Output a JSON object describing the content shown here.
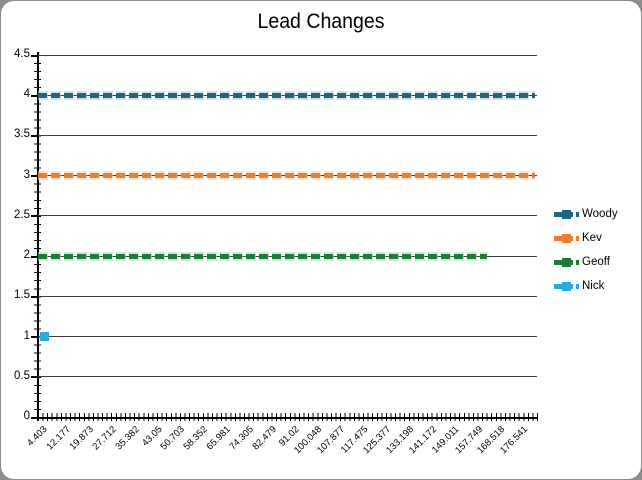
{
  "title": "Lead Changes",
  "frame": {
    "background": "#ffffff",
    "outside_color": "#8c8c8c"
  },
  "chart_data": {
    "type": "line",
    "title": "Lead Changes",
    "xlabel": "",
    "ylabel": "",
    "ylim": [
      0,
      4.5
    ],
    "grid": "horizontal major gridlines every 0.5, black axis lines with minor ticks",
    "legend_position": "right",
    "y_axis_labels": [
      "4.5",
      "4",
      "3.5",
      "3",
      "2.5",
      "2",
      "1.5",
      "1",
      "0.5",
      "0"
    ],
    "x_tick_labels": [
      "4.403",
      "12.177",
      "19.873",
      "27.712",
      "35.382",
      "43.05",
      "50.703",
      "58.352",
      "65.981",
      "74.305",
      "82.479",
      "91.02",
      "100.048",
      "107.877",
      "117.475",
      "125.377",
      "133.198",
      "141.172",
      "149.011",
      "157.749",
      "168.518",
      "176.541"
    ],
    "x_label_interval": 5,
    "x_total_categories": 110,
    "series": [
      {
        "name": "Woody",
        "y": 4,
        "coverage": "constant line across all x values",
        "span_fraction": 1.0,
        "single_point": false,
        "color": "#1f6485",
        "halo": "#a9c8d8",
        "style": "thick dashed line with square markers"
      },
      {
        "name": "Kev",
        "y": 3,
        "coverage": "constant line across all x values",
        "span_fraction": 1.0,
        "single_point": false,
        "color": "#ed7d31",
        "halo": "#f8c9a4",
        "style": "thick dashed line with square markers"
      },
      {
        "name": "Geoff",
        "y": 2,
        "coverage": "constant line ending at ~90% of x range",
        "span_fraction": 0.903,
        "single_point": false,
        "color": "#1e7c34",
        "halo": "#a8d4b0",
        "style": "thick dashed line with square markers"
      },
      {
        "name": "Nick",
        "y": 1,
        "coverage": "single square marker at first x value",
        "span_fraction": 0.012,
        "single_point": true,
        "color": "#29abe2",
        "halo": "#9adcf7",
        "style": "single square marker"
      }
    ]
  }
}
